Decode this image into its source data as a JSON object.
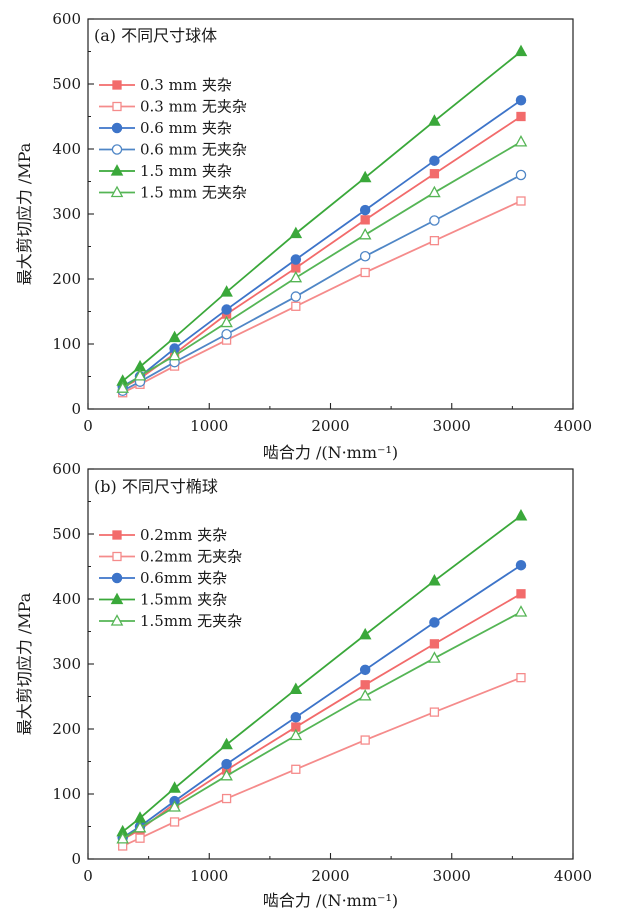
{
  "chart_data": [
    {
      "type": "line",
      "title": "(a) 不同尺寸球体",
      "xlabel": "啮合力 /(N·mm⁻¹)",
      "ylabel": "最大剪切应力 /MPa",
      "xlim": [
        0,
        4000
      ],
      "ylim": [
        0,
        600
      ],
      "xticks": [
        0,
        1000,
        2000,
        3000,
        4000
      ],
      "yticks": [
        0,
        100,
        200,
        300,
        400,
        500,
        600
      ],
      "grid": false,
      "legend_position": "top-left",
      "x": [
        286,
        429,
        714,
        1143,
        1714,
        2286,
        2857,
        3571
      ],
      "series": [
        {
          "name": "0.3 mm 夹杂",
          "color": "#f26b6b",
          "marker": "square",
          "filled": true,
          "values": [
            33,
            47,
            85,
            146,
            217,
            291,
            362,
            450
          ]
        },
        {
          "name": "0.3 mm 无夹杂",
          "color": "#f58b8b",
          "marker": "square",
          "filled": false,
          "values": [
            25,
            38,
            66,
            106,
            158,
            210,
            259,
            320
          ]
        },
        {
          "name": "0.6 mm 夹杂",
          "color": "#3d74c9",
          "marker": "circle",
          "filled": true,
          "values": [
            35,
            50,
            93,
            153,
            230,
            306,
            382,
            475
          ]
        },
        {
          "name": "0.6 mm 无夹杂",
          "color": "#4f86c6",
          "marker": "circle",
          "filled": false,
          "values": [
            28,
            42,
            72,
            115,
            173,
            235,
            290,
            360
          ]
        },
        {
          "name": "1.5 mm 夹杂",
          "color": "#3aa83a",
          "marker": "triangle",
          "filled": true,
          "values": [
            43,
            65,
            110,
            180,
            270,
            356,
            443,
            550
          ]
        },
        {
          "name": "1.5 mm 无夹杂",
          "color": "#55b555",
          "marker": "triangle",
          "filled": false,
          "values": [
            32,
            51,
            82,
            133,
            202,
            268,
            333,
            411
          ]
        }
      ]
    },
    {
      "type": "line",
      "title": "(b) 不同尺寸椭球",
      "xlabel": "啮合力 /(N·mm⁻¹)",
      "ylabel": "最大剪切应力 /MPa",
      "xlim": [
        0,
        4000
      ],
      "ylim": [
        0,
        600
      ],
      "xticks": [
        0,
        1000,
        2000,
        3000,
        4000
      ],
      "yticks": [
        0,
        100,
        200,
        300,
        400,
        500,
        600
      ],
      "grid": false,
      "legend_position": "top-left",
      "x": [
        286,
        429,
        714,
        1143,
        1714,
        2286,
        2857,
        3571
      ],
      "series": [
        {
          "name": "0.2mm 夹杂",
          "color": "#f26b6b",
          "marker": "square",
          "filled": true,
          "values": [
            30,
            45,
            85,
            137,
            203,
            268,
            331,
            408
          ]
        },
        {
          "name": "0.2mm 无夹杂",
          "color": "#f58b8b",
          "marker": "square",
          "filled": false,
          "values": [
            20,
            32,
            57,
            93,
            138,
            183,
            226,
            279
          ]
        },
        {
          "name": "0.6mm 夹杂",
          "color": "#3d74c9",
          "marker": "circle",
          "filled": true,
          "values": [
            33,
            50,
            89,
            146,
            218,
            291,
            364,
            452
          ]
        },
        {
          "name": "1.5mm 夹杂",
          "color": "#3aa83a",
          "marker": "triangle",
          "filled": true,
          "values": [
            42,
            63,
            109,
            176,
            261,
            345,
            428,
            528
          ]
        },
        {
          "name": "1.5mm 无夹杂",
          "color": "#55b555",
          "marker": "triangle",
          "filled": false,
          "values": [
            31,
            48,
            80,
            128,
            190,
            251,
            309,
            380
          ]
        }
      ]
    }
  ]
}
